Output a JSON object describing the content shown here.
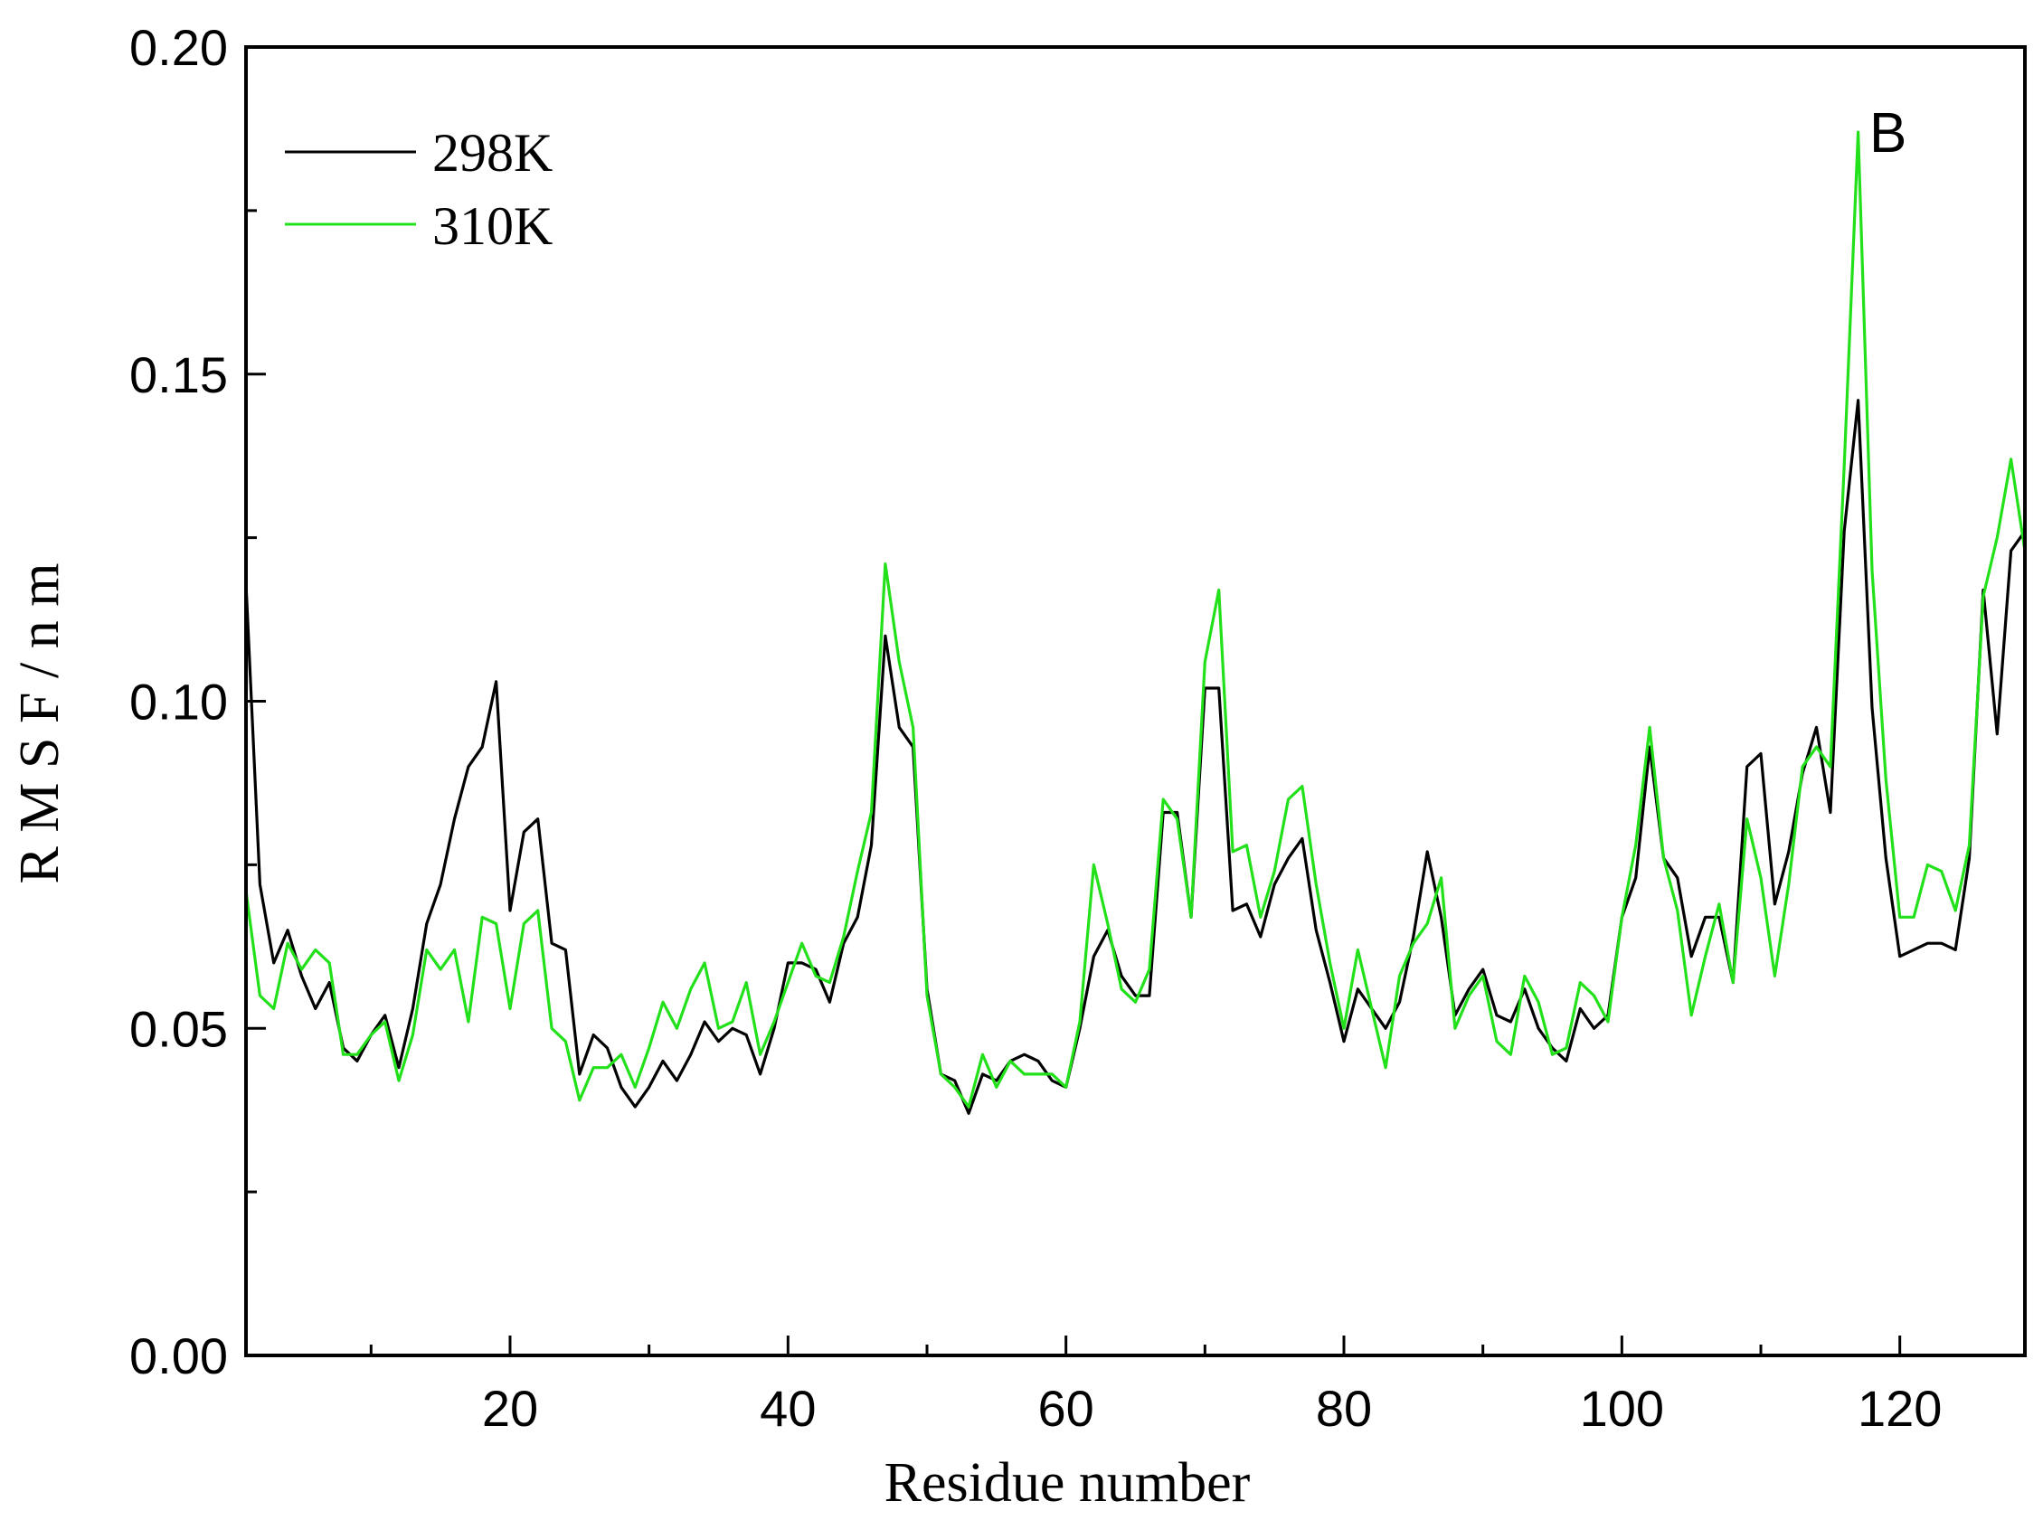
{
  "chart_data": {
    "type": "line",
    "xlabel": "Residue number",
    "ylabel": "R M S F / n m",
    "panel_label": "B",
    "xlim": [
      1,
      129
    ],
    "ylim": [
      0.0,
      0.2
    ],
    "xticks": [
      20,
      40,
      60,
      80,
      100,
      120
    ],
    "xtick_labels": [
      "20",
      "40",
      "60",
      "80",
      "100",
      "120"
    ],
    "yticks": [
      0.0,
      0.05,
      0.1,
      0.15,
      0.2
    ],
    "ytick_labels": [
      "0.00",
      "0.05",
      "0.10",
      "0.15",
      "0.20"
    ],
    "grid": false,
    "legend_position": "top-left",
    "x": [
      1,
      2,
      3,
      4,
      5,
      6,
      7,
      8,
      9,
      10,
      11,
      12,
      13,
      14,
      15,
      16,
      17,
      18,
      19,
      20,
      21,
      22,
      23,
      24,
      25,
      26,
      27,
      28,
      29,
      30,
      31,
      32,
      33,
      34,
      35,
      36,
      37,
      38,
      39,
      40,
      41,
      42,
      43,
      44,
      45,
      46,
      47,
      48,
      49,
      50,
      51,
      52,
      53,
      54,
      55,
      56,
      57,
      58,
      59,
      60,
      61,
      62,
      63,
      64,
      65,
      66,
      67,
      68,
      69,
      70,
      71,
      72,
      73,
      74,
      75,
      76,
      77,
      78,
      79,
      80,
      81,
      82,
      83,
      84,
      85,
      86,
      87,
      88,
      89,
      90,
      91,
      92,
      93,
      94,
      95,
      96,
      97,
      98,
      99,
      100,
      101,
      102,
      103,
      104,
      105,
      106,
      107,
      108,
      109,
      110,
      111,
      112,
      113,
      114,
      115,
      116,
      117,
      118,
      119,
      120,
      121,
      122,
      123,
      124,
      125,
      126,
      127,
      128,
      129
    ],
    "series": [
      {
        "name": "298K",
        "color": "#000000",
        "values": [
          0.118,
          0.072,
          0.06,
          0.065,
          0.058,
          0.053,
          0.057,
          0.047,
          0.045,
          0.049,
          0.052,
          0.044,
          0.053,
          0.066,
          0.072,
          0.082,
          0.09,
          0.093,
          0.103,
          0.068,
          0.08,
          0.082,
          0.063,
          0.062,
          0.043,
          0.049,
          0.047,
          0.041,
          0.038,
          0.041,
          0.045,
          0.042,
          0.046,
          0.051,
          0.048,
          0.05,
          0.049,
          0.043,
          0.05,
          0.06,
          0.06,
          0.059,
          0.054,
          0.063,
          0.067,
          0.078,
          0.11,
          0.096,
          0.093,
          0.056,
          0.043,
          0.042,
          0.037,
          0.043,
          0.042,
          0.045,
          0.046,
          0.045,
          0.042,
          0.041,
          0.05,
          0.061,
          0.065,
          0.058,
          0.055,
          0.055,
          0.083,
          0.083,
          0.067,
          0.102,
          0.102,
          0.068,
          0.069,
          0.064,
          0.072,
          0.076,
          0.079,
          0.065,
          0.057,
          0.048,
          0.056,
          0.053,
          0.05,
          0.054,
          0.064,
          0.077,
          0.067,
          0.052,
          0.056,
          0.059,
          0.052,
          0.051,
          0.056,
          0.05,
          0.047,
          0.045,
          0.053,
          0.05,
          0.052,
          0.067,
          0.073,
          0.093,
          0.076,
          0.073,
          0.061,
          0.067,
          0.067,
          0.057,
          0.09,
          0.092,
          0.069,
          0.077,
          0.089,
          0.096,
          0.083,
          0.126,
          0.146,
          0.099,
          0.076,
          0.061,
          0.062,
          0.063,
          0.063,
          0.062,
          0.076,
          0.117,
          0.095,
          0.123,
          0.126
        ]
      },
      {
        "name": "310K",
        "color": "#22e01a",
        "values": [
          0.071,
          0.055,
          0.053,
          0.063,
          0.059,
          0.062,
          0.06,
          0.046,
          0.046,
          0.049,
          0.051,
          0.042,
          0.049,
          0.062,
          0.059,
          0.062,
          0.051,
          0.067,
          0.066,
          0.053,
          0.066,
          0.068,
          0.05,
          0.048,
          0.039,
          0.044,
          0.044,
          0.046,
          0.041,
          0.047,
          0.054,
          0.05,
          0.056,
          0.06,
          0.05,
          0.051,
          0.057,
          0.046,
          0.051,
          0.057,
          0.063,
          0.058,
          0.057,
          0.064,
          0.074,
          0.083,
          0.121,
          0.106,
          0.096,
          0.055,
          0.043,
          0.041,
          0.038,
          0.046,
          0.041,
          0.045,
          0.043,
          0.043,
          0.043,
          0.041,
          0.051,
          0.075,
          0.066,
          0.056,
          0.054,
          0.059,
          0.085,
          0.082,
          0.067,
          0.106,
          0.117,
          0.077,
          0.078,
          0.067,
          0.074,
          0.085,
          0.087,
          0.072,
          0.06,
          0.05,
          0.062,
          0.053,
          0.044,
          0.058,
          0.063,
          0.066,
          0.073,
          0.05,
          0.055,
          0.058,
          0.048,
          0.046,
          0.058,
          0.054,
          0.046,
          0.047,
          0.057,
          0.055,
          0.051,
          0.067,
          0.078,
          0.096,
          0.076,
          0.068,
          0.052,
          0.061,
          0.069,
          0.057,
          0.082,
          0.073,
          0.058,
          0.072,
          0.09,
          0.093,
          0.09,
          0.136,
          0.187,
          0.12,
          0.088,
          0.067,
          0.067,
          0.075,
          0.074,
          0.068,
          0.078,
          0.116,
          0.125,
          0.137,
          0.123
        ]
      }
    ]
  }
}
